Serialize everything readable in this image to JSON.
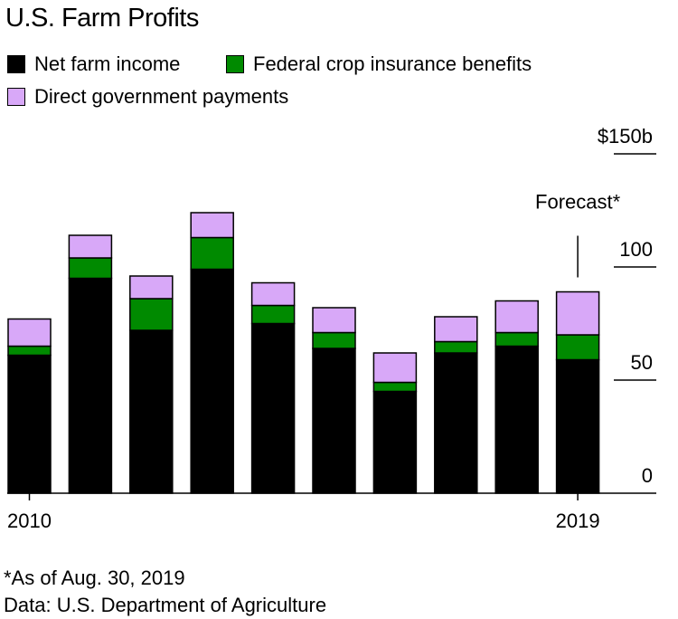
{
  "colors": {
    "net": "#000000",
    "crop": "#008a00",
    "direct": "#d8a8f8",
    "outline": "#000000"
  },
  "footnotes": {
    "asof": "*As of Aug. 30, 2019",
    "source": "Data: U.S. Department of Agriculture"
  },
  "chart_data": {
    "type": "bar",
    "stacked": true,
    "title": "U.S. Farm Profits",
    "xlabel": "",
    "ylabel": "",
    "ylim": [
      0,
      150
    ],
    "y_ticks": [
      {
        "value": 0,
        "label": "0"
      },
      {
        "value": 50,
        "label": "50"
      },
      {
        "value": 100,
        "label": "100"
      },
      {
        "value": 150,
        "label": "$150b"
      }
    ],
    "grid": false,
    "legend_position": "top-left",
    "categories": [
      "2010",
      "2011",
      "2012",
      "2013",
      "2014",
      "2015",
      "2016",
      "2017",
      "2018",
      "2019"
    ],
    "x_tick_labels": [
      {
        "category": "2010",
        "label": "2010"
      },
      {
        "category": "2019",
        "label": "2019"
      }
    ],
    "series": [
      {
        "name": "Net farm income",
        "color_key": "net",
        "values": [
          61,
          95,
          72,
          99,
          75,
          64,
          45,
          62,
          65,
          59
        ]
      },
      {
        "name": "Federal crop insurance benefits",
        "color_key": "crop",
        "values": [
          4,
          9,
          14,
          14,
          8,
          7,
          4,
          5,
          6,
          11
        ]
      },
      {
        "name": "Direct government payments",
        "color_key": "direct",
        "values": [
          12,
          10,
          10,
          11,
          10,
          11,
          13,
          11,
          14,
          19
        ]
      }
    ],
    "annotations": [
      {
        "category": "2019",
        "text": "Forecast*"
      }
    ]
  }
}
